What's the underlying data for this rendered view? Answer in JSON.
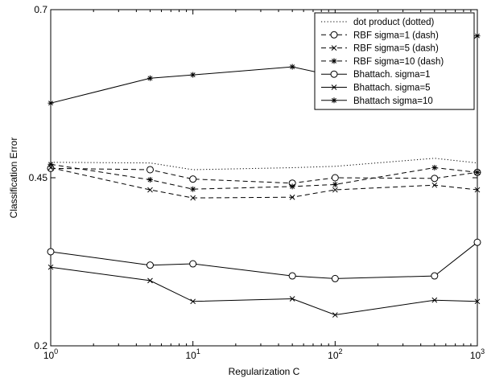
{
  "chart_data": {
    "type": "line",
    "title": "",
    "xlabel": "Regularization C",
    "ylabel": "Classification Error",
    "xscale": "log",
    "xlim": [
      1,
      1000
    ],
    "ylim": [
      0.2,
      0.7
    ],
    "x_ticks": [
      {
        "value": 1,
        "base": "10",
        "exp": "0"
      },
      {
        "value": 10,
        "base": "10",
        "exp": "1"
      },
      {
        "value": 100,
        "base": "10",
        "exp": "2"
      },
      {
        "value": 1000,
        "base": "10",
        "exp": "3"
      }
    ],
    "y_ticks": [
      {
        "value": 0.2,
        "label": "0.2"
      },
      {
        "value": 0.45,
        "label": "0.45"
      },
      {
        "value": 0.7,
        "label": "0.7"
      }
    ],
    "grid": false,
    "legend": {
      "placement": "top-right"
    },
    "x": [
      1,
      5,
      10,
      50,
      100,
      500,
      1000
    ],
    "series": [
      {
        "name": "dot product (dotted)",
        "line": "dotted",
        "marker": "none",
        "values": [
          0.473,
          0.472,
          0.462,
          0.465,
          0.467,
          0.479,
          0.472
        ]
      },
      {
        "name": "RBF sigma=1 (dash)",
        "line": "dashed",
        "marker": "circle",
        "values": [
          0.464,
          0.462,
          0.448,
          0.442,
          0.45,
          0.449,
          0.458
        ]
      },
      {
        "name": "RBF sigma=5 (dash)",
        "line": "dashed",
        "marker": "x",
        "values": [
          0.465,
          0.432,
          0.42,
          0.421,
          0.432,
          0.439,
          0.432
        ]
      },
      {
        "name": "RBF sigma=10 (dash)",
        "line": "dashed",
        "marker": "star",
        "values": [
          0.47,
          0.447,
          0.433,
          0.437,
          0.44,
          0.465,
          0.458
        ]
      },
      {
        "name": "Bhattach. sigma=1",
        "line": "solid",
        "marker": "circle",
        "values": [
          0.34,
          0.32,
          0.322,
          0.304,
          0.3,
          0.304,
          0.354
        ]
      },
      {
        "name": "Bhattach. sigma=5",
        "line": "solid",
        "marker": "x",
        "values": [
          0.317,
          0.297,
          0.266,
          0.27,
          0.246,
          0.268,
          0.266
        ]
      },
      {
        "name": "Bhattach sigma=10",
        "line": "solid",
        "marker": "star",
        "values": [
          0.561,
          0.598,
          0.603,
          0.615,
          0.601,
          0.608,
          0.661
        ]
      }
    ]
  }
}
